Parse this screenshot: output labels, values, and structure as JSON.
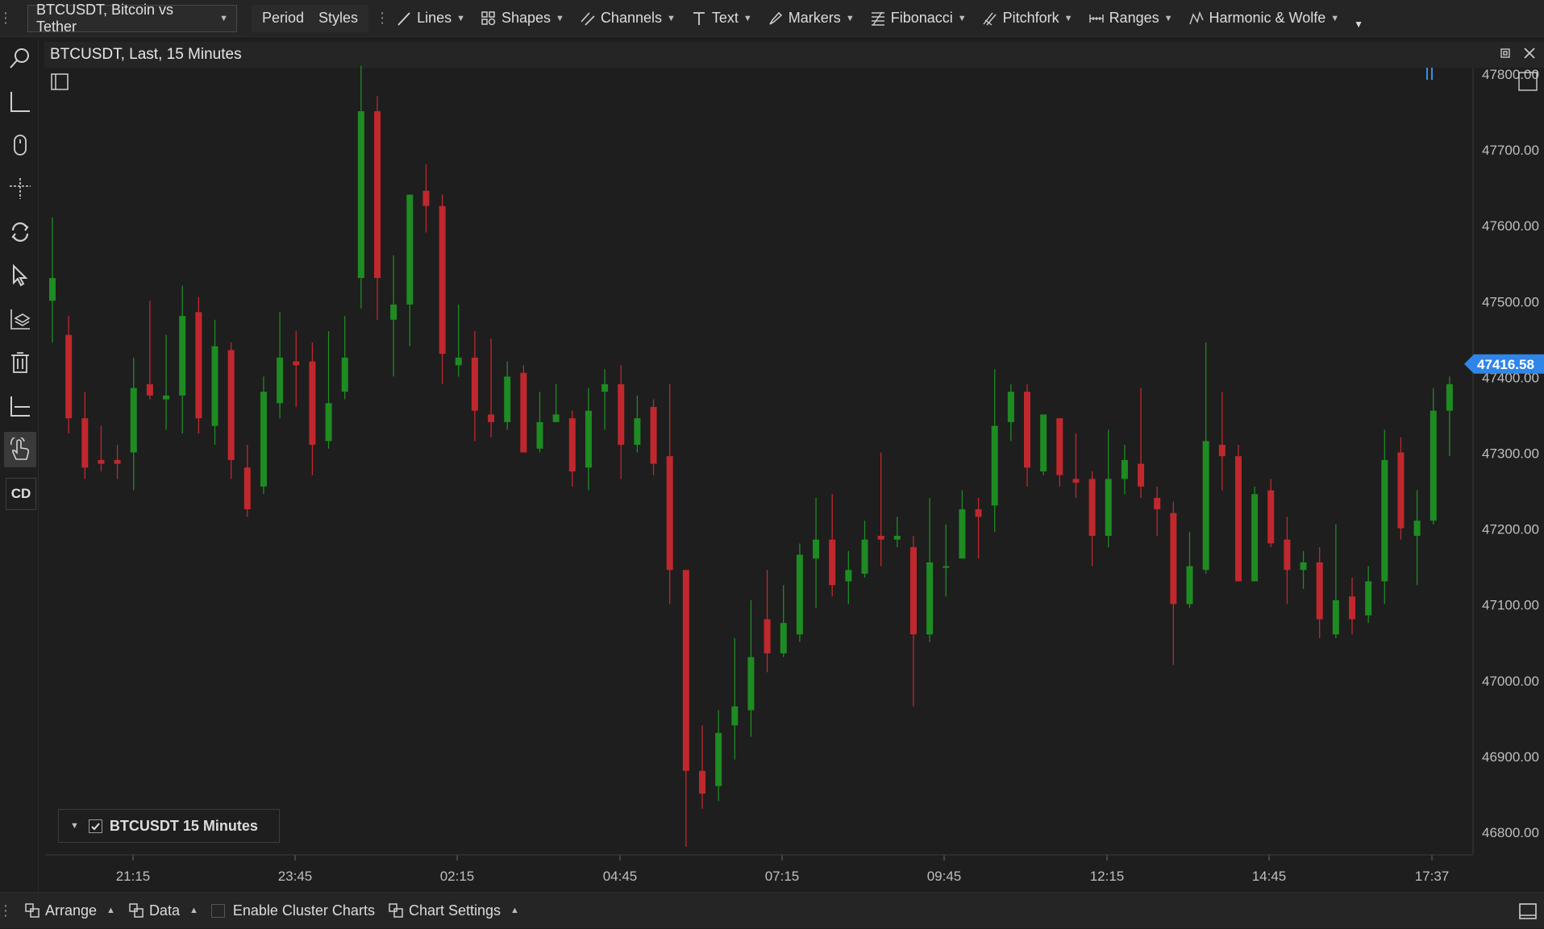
{
  "toolbar": {
    "symbol": "BTCUSDT, Bitcoin vs Tether",
    "period": "Period",
    "styles": "Styles",
    "tools": [
      {
        "label": "Lines",
        "icon": "line-icon"
      },
      {
        "label": "Shapes",
        "icon": "shapes-icon"
      },
      {
        "label": "Channels",
        "icon": "channels-icon"
      },
      {
        "label": "Text",
        "icon": "text-icon"
      },
      {
        "label": "Markers",
        "icon": "marker-icon"
      },
      {
        "label": "Fibonacci",
        "icon": "fibonacci-icon"
      },
      {
        "label": "Pitchfork",
        "icon": "pitchfork-icon"
      },
      {
        "label": "Ranges",
        "icon": "ranges-icon"
      },
      {
        "label": "Harmonic & Wolfe",
        "icon": "harmonic-icon"
      }
    ]
  },
  "left_tools": [
    "search-icon",
    "ruler-icon",
    "mouse-icon",
    "crosshair-icon",
    "refresh-icon",
    "cursor-icon",
    "layers-icon",
    "trash-icon",
    "horizontal-line-icon",
    "hand-pointer-icon"
  ],
  "left_tools_cd": "CD",
  "chart": {
    "title": "BTCUSDT, Last, 15 Minutes",
    "last_price": "47416.58",
    "legend": "BTCUSDT 15 Minutes"
  },
  "chart_data": {
    "type": "candlestick",
    "ylim": [
      46775,
      47815
    ],
    "y_ticks": [
      "47800.00",
      "47700.00",
      "47600.00",
      "47500.00",
      "47400.00",
      "47300.00",
      "47200.00",
      "47100.00",
      "47000.00",
      "46900.00",
      "46800.00"
    ],
    "x_ticks": [
      "21:15",
      "23:45",
      "02:15",
      "04:45",
      "07:15",
      "09:45",
      "12:15",
      "14:45",
      "17:37"
    ],
    "up_color": "#1e8b23",
    "down_color": "#c0282d",
    "candles": [
      [
        47500,
        47530,
        47610,
        47445
      ],
      [
        47455,
        47345,
        47480,
        47325
      ],
      [
        47345,
        47280,
        47380,
        47265
      ],
      [
        47290,
        47285,
        47335,
        47275
      ],
      [
        47290,
        47285,
        47310,
        47265
      ],
      [
        47300,
        47385,
        47425,
        47250
      ],
      [
        47390,
        47375,
        47500,
        47370
      ],
      [
        47370,
        47375,
        47455,
        47330
      ],
      [
        47375,
        47480,
        47520,
        47325
      ],
      [
        47485,
        47345,
        47505,
        47325
      ],
      [
        47335,
        47440,
        47475,
        47310
      ],
      [
        47435,
        47290,
        47445,
        47265
      ],
      [
        47280,
        47225,
        47310,
        47215
      ],
      [
        47255,
        47380,
        47400,
        47245
      ],
      [
        47365,
        47425,
        47485,
        47345
      ],
      [
        47420,
        47415,
        47460,
        47360
      ],
      [
        47420,
        47310,
        47445,
        47270
      ],
      [
        47315,
        47365,
        47460,
        47305
      ],
      [
        47380,
        47425,
        47480,
        47370
      ],
      [
        47530,
        47750,
        47810,
        47490
      ],
      [
        47750,
        47530,
        47770,
        47475
      ],
      [
        47475,
        47495,
        47560,
        47400
      ],
      [
        47495,
        47640,
        47640,
        47440
      ],
      [
        47645,
        47625,
        47680,
        47590
      ],
      [
        47625,
        47430,
        47640,
        47390
      ],
      [
        47415,
        47425,
        47495,
        47400
      ],
      [
        47425,
        47355,
        47460,
        47315
      ],
      [
        47350,
        47340,
        47450,
        47320
      ],
      [
        47340,
        47400,
        47420,
        47330
      ],
      [
        47405,
        47300,
        47415,
        47300
      ],
      [
        47305,
        47340,
        47380,
        47300
      ],
      [
        47340,
        47350,
        47390,
        47340
      ],
      [
        47345,
        47275,
        47355,
        47255
      ],
      [
        47280,
        47355,
        47385,
        47250
      ],
      [
        47380,
        47390,
        47410,
        47330
      ],
      [
        47390,
        47310,
        47415,
        47265
      ],
      [
        47310,
        47345,
        47375,
        47300
      ],
      [
        47360,
        47285,
        47370,
        47270
      ],
      [
        47295,
        47145,
        47390,
        47100
      ],
      [
        47145,
        46880,
        47145,
        46780
      ],
      [
        46880,
        46850,
        46940,
        46830
      ],
      [
        46860,
        46930,
        46960,
        46840
      ],
      [
        46940,
        46965,
        47055,
        46895
      ],
      [
        46960,
        47030,
        47105,
        46925
      ],
      [
        47080,
        47035,
        47145,
        47010
      ],
      [
        47035,
        47075,
        47125,
        47030
      ],
      [
        47060,
        47165,
        47180,
        47050
      ],
      [
        47160,
        47185,
        47240,
        47095
      ],
      [
        47185,
        47125,
        47245,
        47110
      ],
      [
        47130,
        47145,
        47170,
        47100
      ],
      [
        47140,
        47185,
        47210,
        47135
      ],
      [
        47190,
        47185,
        47300,
        47150
      ],
      [
        47185,
        47190,
        47215,
        47175
      ],
      [
        47175,
        47060,
        47190,
        46965
      ],
      [
        47060,
        47155,
        47240,
        47050
      ],
      [
        47150,
        47150,
        47205,
        47110
      ],
      [
        47160,
        47225,
        47250,
        47180
      ],
      [
        47225,
        47215,
        47240,
        47160
      ],
      [
        47230,
        47335,
        47410,
        47195
      ],
      [
        47340,
        47380,
        47390,
        47315
      ],
      [
        47380,
        47280,
        47390,
        47255
      ],
      [
        47275,
        47350,
        47350,
        47270
      ],
      [
        47345,
        47270,
        47345,
        47255
      ],
      [
        47265,
        47260,
        47325,
        47240
      ],
      [
        47265,
        47190,
        47275,
        47150
      ],
      [
        47190,
        47265,
        47330,
        47175
      ],
      [
        47265,
        47290,
        47310,
        47245
      ],
      [
        47285,
        47255,
        47385,
        47240
      ],
      [
        47240,
        47225,
        47255,
        47190
      ],
      [
        47220,
        47100,
        47235,
        47020
      ],
      [
        47100,
        47150,
        47195,
        47095
      ],
      [
        47145,
        47315,
        47445,
        47140
      ],
      [
        47310,
        47295,
        47380,
        47250
      ],
      [
        47295,
        47130,
        47310,
        47130
      ],
      [
        47130,
        47245,
        47255,
        47135
      ],
      [
        47250,
        47180,
        47265,
        47175
      ],
      [
        47185,
        47145,
        47215,
        47100
      ],
      [
        47145,
        47155,
        47170,
        47120
      ],
      [
        47155,
        47080,
        47175,
        47055
      ],
      [
        47060,
        47105,
        47205,
        47055
      ],
      [
        47110,
        47080,
        47135,
        47060
      ],
      [
        47085,
        47130,
        47150,
        47075
      ],
      [
        47130,
        47290,
        47330,
        47100
      ],
      [
        47300,
        47200,
        47320,
        47185
      ],
      [
        47190,
        47210,
        47250,
        47125
      ],
      [
        47210,
        47355,
        47385,
        47205
      ],
      [
        47355,
        47390,
        47400,
        47295
      ]
    ]
  }
}
